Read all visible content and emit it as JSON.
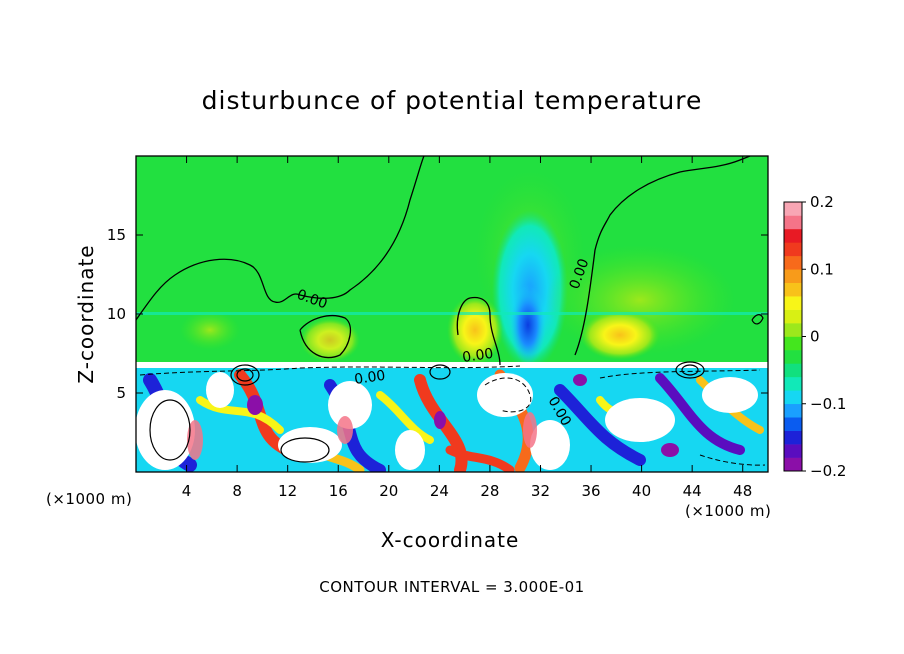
{
  "chart_data": {
    "type": "heatmap",
    "title": "disturbunce of potential temperature",
    "xlabel": "X-coordinate",
    "ylabel": "Z-coordinate",
    "x_units": "(×1000 m)",
    "x_ticks": [
      4,
      8,
      12,
      16,
      20,
      24,
      28,
      32,
      36,
      40,
      44,
      48
    ],
    "y_ticks": [
      5,
      10,
      15
    ],
    "xlim": [
      0,
      50
    ],
    "ylim": [
      0,
      20
    ],
    "colorbar": {
      "ticks": [
        "0.2",
        "0.1",
        "0",
        "−0.1",
        "−0.2"
      ],
      "range": [
        -0.2,
        0.2
      ],
      "colors": [
        "#8b0fa8",
        "#5a0dbf",
        "#1d22d8",
        "#0a5cf0",
        "#1aa0ff",
        "#16d7f2",
        "#11e9b8",
        "#11e07e",
        "#22e040",
        "#44e61e",
        "#9ce81c",
        "#d8f014",
        "#f8f518",
        "#f8c21a",
        "#f89b1a",
        "#f76a1b",
        "#f03a1e",
        "#e81a24",
        "#f57488",
        "#f8a6b4"
      ]
    },
    "contour_labels": [
      "0.00",
      "0.00",
      "0.00",
      "0.00",
      "0.00"
    ],
    "annotation": "CONTOUR INTERVAL = 3.000E-01"
  }
}
